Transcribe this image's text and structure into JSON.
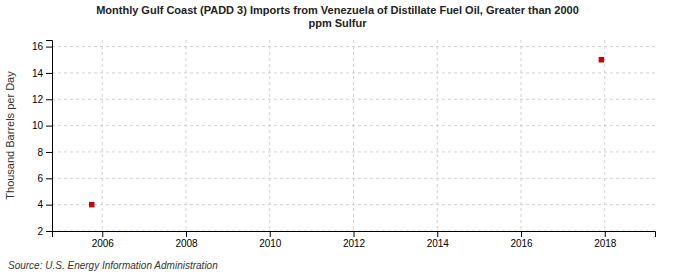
{
  "chart_data": {
    "type": "scatter",
    "title": "Monthly Gulf Coast (PADD 3) Imports from Venezuela of Distillate Fuel Oil, Greater than 2000\nppm Sulfur",
    "ylabel": "Thousand Barrels per Day",
    "source": "Source: U.S. Energy Information Administration",
    "x": [
      2005.75,
      2017.92
    ],
    "values": [
      4.0,
      15.0
    ],
    "color": "#cc0000",
    "marker": "square",
    "xlim": [
      2004.8,
      2019.2
    ],
    "ylim": [
      2,
      16.5
    ],
    "xticks": [
      2006,
      2008,
      2010,
      2012,
      2014,
      2016,
      2018
    ],
    "yticks": [
      2,
      4,
      6,
      8,
      10,
      12,
      14,
      16
    ],
    "grid": true
  }
}
